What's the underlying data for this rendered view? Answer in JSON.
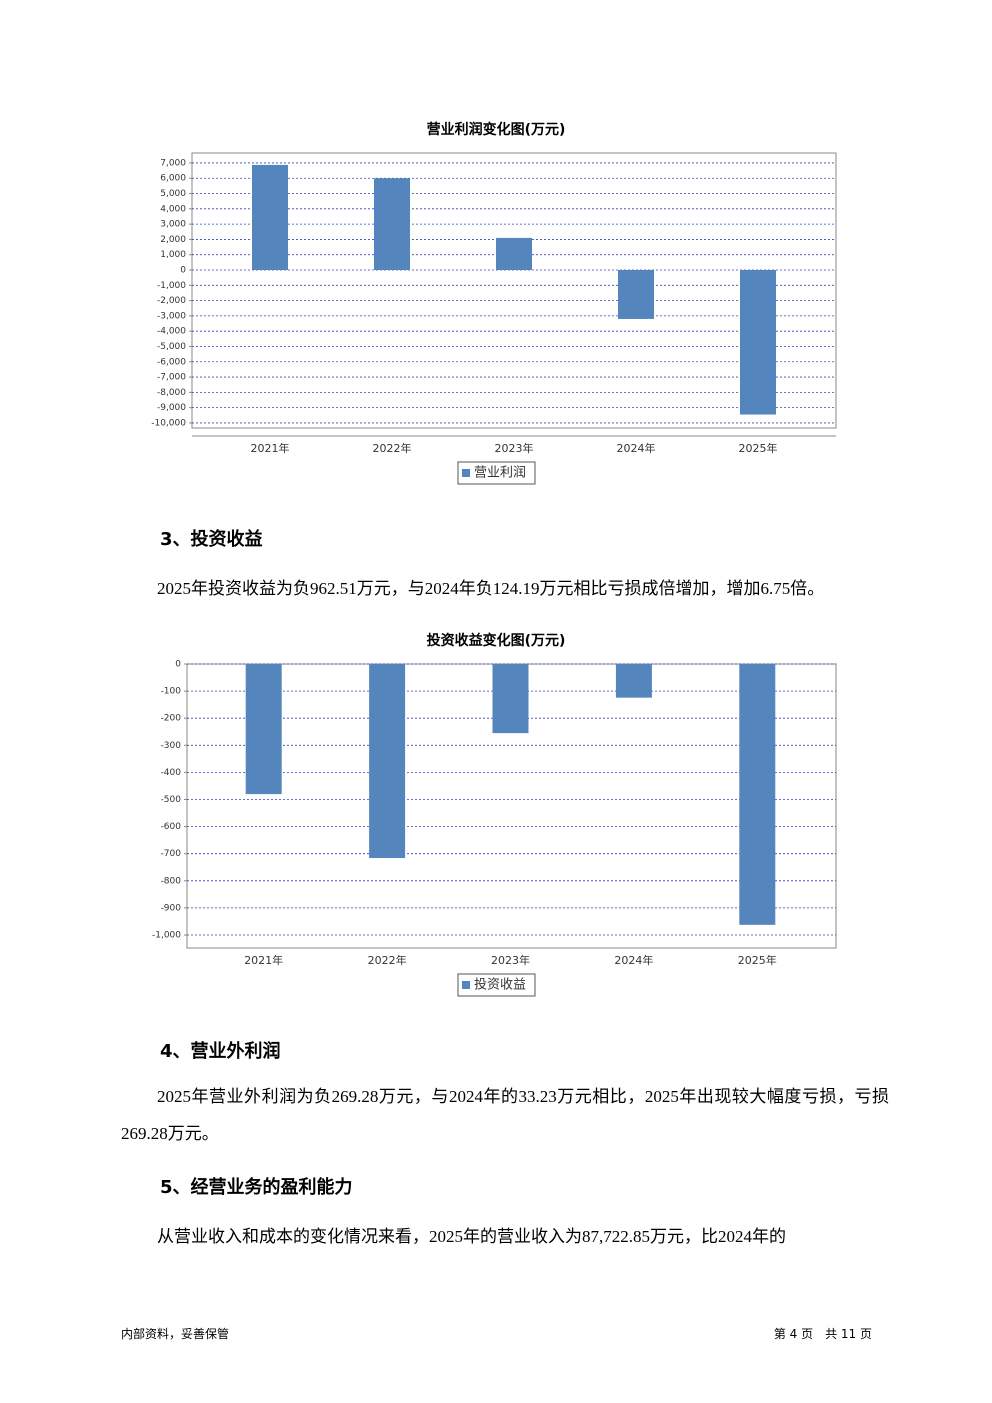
{
  "chart_data": [
    {
      "type": "bar",
      "title": "营业利润变化图(万元)",
      "categories": [
        "2021年",
        "2022年",
        "2023年",
        "2024年",
        "2025年"
      ],
      "series": [
        {
          "name": "营业利润",
          "color": "#5585bd",
          "values": [
            6870,
            6000,
            2100,
            -3200,
            -9450
          ]
        }
      ],
      "ylim": [
        -10330,
        7650
      ],
      "yticks": [
        {
          "value": 7000,
          "label": "7,000"
        },
        {
          "value": 6000,
          "label": "6,000"
        },
        {
          "value": 5000,
          "label": "5,000"
        },
        {
          "value": 4000,
          "label": "4,000"
        },
        {
          "value": 3000,
          "label": "3,000"
        },
        {
          "value": 2000,
          "label": "2,000"
        },
        {
          "value": 1000,
          "label": "1,000"
        },
        0,
        {
          "value": -1000,
          "label": "-1,000"
        },
        {
          "value": -2000,
          "label": "-2,000"
        },
        {
          "value": -3000,
          "label": "-3,000"
        },
        {
          "value": -4000,
          "label": "-4,000"
        },
        {
          "value": -5000,
          "label": "-5,000"
        },
        {
          "value": -6000,
          "label": "-6,000"
        },
        {
          "value": -7000,
          "label": "-7,000"
        },
        {
          "value": -8000,
          "label": "-8,000"
        },
        {
          "value": -9000,
          "label": "-9,000"
        },
        {
          "value": -10000,
          "label": "-10,000"
        }
      ],
      "grid": true
    },
    {
      "type": "bar",
      "title": "投资收益变化图(万元)",
      "categories": [
        "2021年",
        "2022年",
        "2023年",
        "2024年",
        "2025年"
      ],
      "series": [
        {
          "name": "投资收益",
          "color": "#5585bd",
          "values": [
            -480,
            -716,
            -255,
            -124.19,
            -962.51
          ]
        }
      ],
      "ylim": [
        -1048,
        0
      ],
      "yticks": [
        0,
        -100,
        -200,
        -300,
        -400,
        -500,
        -600,
        -700,
        -800,
        -900,
        {
          "value": -1000,
          "label": "-1,000"
        }
      ],
      "grid": true
    }
  ],
  "sections": [
    {
      "heading": "3、投资收益",
      "paragraph": "2025年投资收益为负962.51万元，与2024年负124.19万元相比亏损成倍增加，增加6.75倍。"
    },
    {
      "heading": "4、营业外利润",
      "paragraph": "2025年营业外利润为负269.28万元，与2024年的33.23万元相比，2025年出现较大幅度亏损，亏损269.28万元。"
    },
    {
      "heading": "5、经营业务的盈利能力",
      "paragraph": "从营业收入和成本的变化情况来看，2025年的营业收入为87,722.85万元，比2024年的"
    }
  ],
  "footer": {
    "left": "内部资料，妥善保管",
    "right": "第 4 页　共 11 页"
  }
}
